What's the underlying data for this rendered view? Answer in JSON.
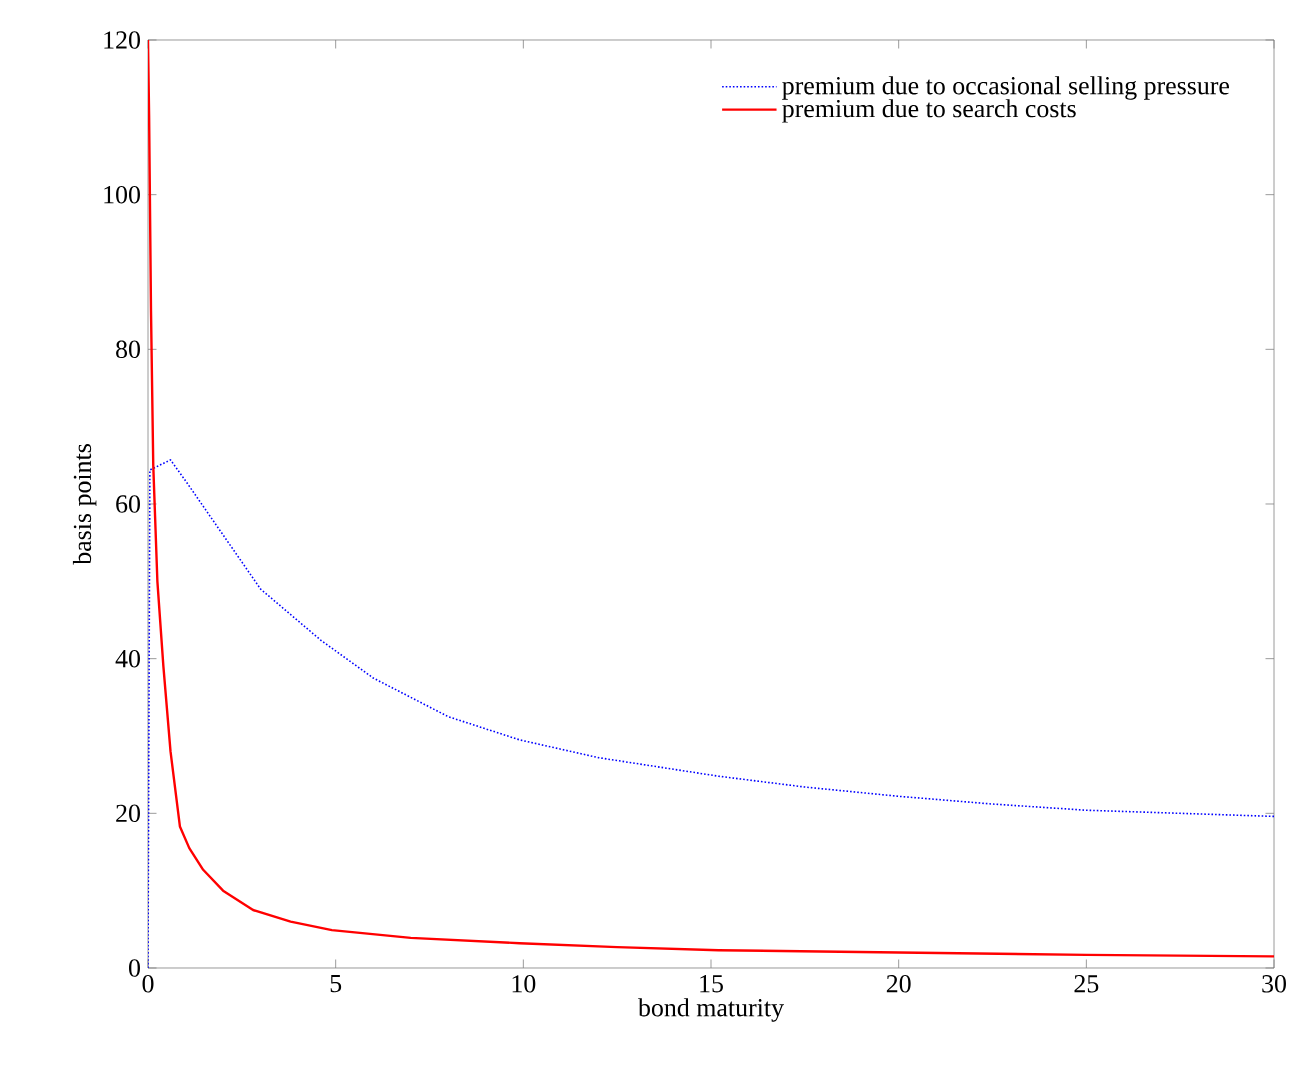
{
  "chart_data": {
    "type": "line",
    "xlabel": "bond maturity",
    "ylabel": "basis points",
    "xlim": [
      0,
      30
    ],
    "ylim": [
      0,
      120
    ],
    "xticks": [
      0,
      5,
      10,
      15,
      20,
      25,
      30
    ],
    "yticks": [
      0,
      20,
      40,
      60,
      80,
      100,
      120
    ],
    "legend": "top right",
    "series": [
      {
        "name": "premium due to occasional selling pressure",
        "color": "#0000ff",
        "line_style": "dotted",
        "x": [
          0,
          0.05,
          0.6,
          1,
          2,
          3,
          4.6,
          6,
          8,
          9.9,
          12,
          15.2,
          17.5,
          20,
          22.5,
          25,
          27.5,
          30
        ],
        "values": [
          0,
          64.4,
          65.7,
          63,
          56,
          49,
          42.4,
          37.5,
          32.5,
          29.5,
          27.2,
          24.8,
          23.4,
          22.2,
          21.2,
          20.4,
          20,
          19.6
        ]
      },
      {
        "name": "premium due to search costs",
        "color": "#ff0000",
        "line_style": "solid",
        "x": [
          0,
          0.03,
          0.08,
          0.14,
          0.25,
          0.41,
          0.6,
          0.85,
          1.1,
          1.47,
          2,
          2.8,
          3.8,
          4.9,
          7,
          9.9,
          12.5,
          15.2,
          20,
          25,
          30
        ],
        "values": [
          120,
          110,
          85,
          65,
          50,
          39,
          28,
          18.3,
          15.5,
          12.7,
          10,
          7.5,
          6,
          4.9,
          3.9,
          3.2,
          2.7,
          2.3,
          2,
          1.7,
          1.5
        ]
      }
    ]
  }
}
